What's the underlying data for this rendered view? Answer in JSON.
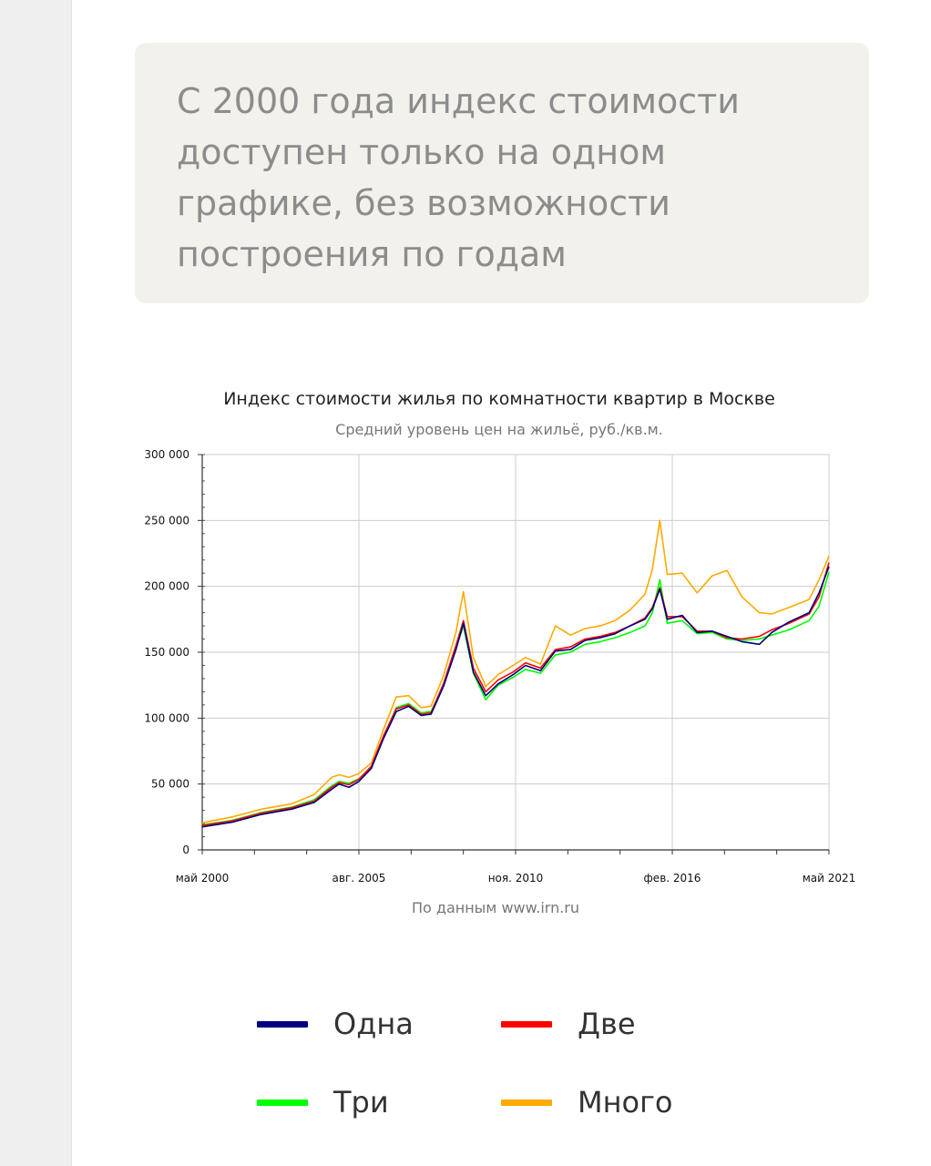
{
  "note": {
    "text": "С 2000 года индекс стоимости доступен только на одном графике, без возможности построения по годам"
  },
  "chart_data": {
    "type": "line",
    "title": "Индекс стоимости жилья по комнатности квартир в Москве",
    "subtitle": "Средний уровень цен на жильё, руб./кв.м.",
    "source": "По данным www.irn.ru",
    "x_start": "2000-05",
    "x_end": "2021-05",
    "ylim": [
      0,
      300000
    ],
    "y_ticks": [
      0,
      50000,
      100000,
      150000,
      200000,
      250000,
      300000
    ],
    "y_tick_labels": [
      "0",
      "50 000",
      "100 000",
      "150 000",
      "200 000",
      "250 000",
      "300 000"
    ],
    "x_tick_labels": [
      {
        "date": "2000-05",
        "label": "май 2000"
      },
      {
        "date": "2005-08",
        "label": "авг. 2005"
      },
      {
        "date": "2010-11",
        "label": "ноя. 2010"
      },
      {
        "date": "2016-02",
        "label": "фев. 2016"
      },
      {
        "date": "2021-05",
        "label": "май 2021"
      }
    ],
    "grid": true,
    "series": [
      {
        "name": "Одна",
        "color": "#000080",
        "points": [
          [
            "2000-05",
            17500
          ],
          [
            "2001-05",
            21000
          ],
          [
            "2002-05",
            27000
          ],
          [
            "2003-05",
            31000
          ],
          [
            "2004-02",
            36000
          ],
          [
            "2004-09",
            46000
          ],
          [
            "2004-12",
            50000
          ],
          [
            "2005-04",
            47500
          ],
          [
            "2005-08",
            52000
          ],
          [
            "2006-01",
            62000
          ],
          [
            "2006-06",
            85000
          ],
          [
            "2006-11",
            105000
          ],
          [
            "2007-04",
            109000
          ],
          [
            "2007-09",
            102000
          ],
          [
            "2008-01",
            103000
          ],
          [
            "2008-06",
            124000
          ],
          [
            "2008-11",
            152000
          ],
          [
            "2009-02",
            172000
          ],
          [
            "2009-06",
            135000
          ],
          [
            "2009-11",
            117000
          ],
          [
            "2010-04",
            126000
          ],
          [
            "2010-10",
            133000
          ],
          [
            "2011-03",
            140000
          ],
          [
            "2011-09",
            136000
          ],
          [
            "2012-03",
            151000
          ],
          [
            "2012-09",
            152000
          ],
          [
            "2013-03",
            159000
          ],
          [
            "2013-09",
            161000
          ],
          [
            "2014-03",
            164000
          ],
          [
            "2014-09",
            170000
          ],
          [
            "2015-03",
            175000
          ],
          [
            "2015-06",
            183000
          ],
          [
            "2015-09",
            198000
          ],
          [
            "2015-12",
            175000
          ],
          [
            "2016-06",
            178000
          ],
          [
            "2016-12",
            165000
          ],
          [
            "2017-06",
            166000
          ],
          [
            "2017-12",
            162000
          ],
          [
            "2018-06",
            158000
          ],
          [
            "2019-01",
            156000
          ],
          [
            "2019-06",
            165000
          ],
          [
            "2020-01",
            173000
          ],
          [
            "2020-09",
            180000
          ],
          [
            "2021-01",
            195000
          ],
          [
            "2021-05",
            215000
          ]
        ]
      },
      {
        "name": "Две",
        "color": "#ff0000",
        "points": [
          [
            "2000-05",
            18500
          ],
          [
            "2001-05",
            22000
          ],
          [
            "2002-05",
            28000
          ],
          [
            "2003-05",
            32000
          ],
          [
            "2004-02",
            37000
          ],
          [
            "2004-09",
            47500
          ],
          [
            "2004-12",
            51000
          ],
          [
            "2005-04",
            49500
          ],
          [
            "2005-08",
            53500
          ],
          [
            "2006-01",
            63500
          ],
          [
            "2006-06",
            87000
          ],
          [
            "2006-11",
            107000
          ],
          [
            "2007-04",
            110000
          ],
          [
            "2007-09",
            103000
          ],
          [
            "2008-01",
            104000
          ],
          [
            "2008-06",
            126000
          ],
          [
            "2008-11",
            155000
          ],
          [
            "2009-02",
            174000
          ],
          [
            "2009-06",
            138000
          ],
          [
            "2009-11",
            120000
          ],
          [
            "2010-04",
            129000
          ],
          [
            "2010-10",
            135000
          ],
          [
            "2011-03",
            142000
          ],
          [
            "2011-09",
            138000
          ],
          [
            "2012-03",
            152000
          ],
          [
            "2012-09",
            154000
          ],
          [
            "2013-03",
            160000
          ],
          [
            "2013-09",
            162000
          ],
          [
            "2014-03",
            165000
          ],
          [
            "2014-09",
            170000
          ],
          [
            "2015-03",
            176000
          ],
          [
            "2015-06",
            184000
          ],
          [
            "2015-09",
            199000
          ],
          [
            "2015-12",
            177000
          ],
          [
            "2016-06",
            177000
          ],
          [
            "2016-12",
            166000
          ],
          [
            "2017-06",
            166000
          ],
          [
            "2017-12",
            161000
          ],
          [
            "2018-06",
            160000
          ],
          [
            "2019-01",
            162000
          ],
          [
            "2019-06",
            167000
          ],
          [
            "2020-01",
            172000
          ],
          [
            "2020-09",
            179000
          ],
          [
            "2021-01",
            192000
          ],
          [
            "2021-05",
            218000
          ]
        ]
      },
      {
        "name": "Три",
        "color": "#00ff00",
        "points": [
          [
            "2000-05",
            19000
          ],
          [
            "2001-05",
            22500
          ],
          [
            "2002-05",
            28500
          ],
          [
            "2003-05",
            32500
          ],
          [
            "2004-02",
            38000
          ],
          [
            "2004-09",
            48500
          ],
          [
            "2004-12",
            52000
          ],
          [
            "2005-04",
            50500
          ],
          [
            "2005-08",
            54000
          ],
          [
            "2006-01",
            63000
          ],
          [
            "2006-06",
            86000
          ],
          [
            "2006-11",
            108000
          ],
          [
            "2007-04",
            111000
          ],
          [
            "2007-09",
            104000
          ],
          [
            "2008-01",
            105000
          ],
          [
            "2008-06",
            125000
          ],
          [
            "2008-11",
            153000
          ],
          [
            "2009-02",
            170000
          ],
          [
            "2009-06",
            134000
          ],
          [
            "2009-11",
            114000
          ],
          [
            "2010-04",
            125000
          ],
          [
            "2010-10",
            131000
          ],
          [
            "2011-03",
            137000
          ],
          [
            "2011-09",
            134000
          ],
          [
            "2012-03",
            148000
          ],
          [
            "2012-09",
            150000
          ],
          [
            "2013-03",
            156000
          ],
          [
            "2013-09",
            158000
          ],
          [
            "2014-03",
            161000
          ],
          [
            "2014-09",
            165000
          ],
          [
            "2015-03",
            170000
          ],
          [
            "2015-06",
            180000
          ],
          [
            "2015-09",
            205000
          ],
          [
            "2015-12",
            172000
          ],
          [
            "2016-06",
            174000
          ],
          [
            "2016-12",
            164000
          ],
          [
            "2017-06",
            165000
          ],
          [
            "2017-12",
            160000
          ],
          [
            "2018-06",
            159000
          ],
          [
            "2019-01",
            160000
          ],
          [
            "2019-06",
            163000
          ],
          [
            "2020-01",
            167000
          ],
          [
            "2020-09",
            174000
          ],
          [
            "2021-01",
            185000
          ],
          [
            "2021-05",
            211000
          ]
        ]
      },
      {
        "name": "Много",
        "color": "#ffaa00",
        "points": [
          [
            "2000-05",
            20500
          ],
          [
            "2001-05",
            25000
          ],
          [
            "2002-05",
            31000
          ],
          [
            "2003-05",
            35000
          ],
          [
            "2004-02",
            42000
          ],
          [
            "2004-09",
            55000
          ],
          [
            "2004-12",
            57000
          ],
          [
            "2005-04",
            55000
          ],
          [
            "2005-08",
            58000
          ],
          [
            "2006-01",
            66000
          ],
          [
            "2006-06",
            92000
          ],
          [
            "2006-11",
            116000
          ],
          [
            "2007-04",
            117000
          ],
          [
            "2007-09",
            108000
          ],
          [
            "2008-01",
            109000
          ],
          [
            "2008-06",
            132000
          ],
          [
            "2008-11",
            165000
          ],
          [
            "2009-02",
            196000
          ],
          [
            "2009-06",
            146000
          ],
          [
            "2009-11",
            124000
          ],
          [
            "2010-04",
            133000
          ],
          [
            "2010-10",
            140000
          ],
          [
            "2011-03",
            146000
          ],
          [
            "2011-09",
            141000
          ],
          [
            "2012-03",
            170000
          ],
          [
            "2012-09",
            163000
          ],
          [
            "2013-03",
            168000
          ],
          [
            "2013-09",
            170000
          ],
          [
            "2014-03",
            174000
          ],
          [
            "2014-09",
            182000
          ],
          [
            "2015-03",
            194000
          ],
          [
            "2015-06",
            213000
          ],
          [
            "2015-09",
            250000
          ],
          [
            "2015-12",
            209000
          ],
          [
            "2016-06",
            210000
          ],
          [
            "2016-12",
            195000
          ],
          [
            "2017-06",
            208000
          ],
          [
            "2017-12",
            212000
          ],
          [
            "2018-06",
            192000
          ],
          [
            "2019-01",
            180000
          ],
          [
            "2019-06",
            179000
          ],
          [
            "2020-01",
            184000
          ],
          [
            "2020-09",
            190000
          ],
          [
            "2021-01",
            205000
          ],
          [
            "2021-05",
            223000
          ]
        ]
      }
    ]
  },
  "legend": [
    {
      "label": "Одна",
      "color": "#000080"
    },
    {
      "label": "Две",
      "color": "#ff0000"
    },
    {
      "label": "Три",
      "color": "#00ff00"
    },
    {
      "label": "Много",
      "color": "#ffaa00"
    }
  ]
}
